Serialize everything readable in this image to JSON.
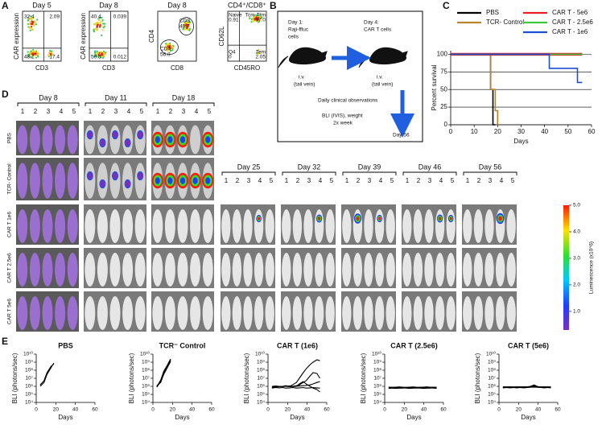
{
  "panel_a": {
    "letter": "A",
    "flow": [
      {
        "title": "Day 5",
        "ylabel": "CAR expression",
        "xlabel": "CD3",
        "labels": [
          "32.4",
          "2.09",
          "48.1",
          "17.4"
        ]
      },
      {
        "title": "Day 8",
        "ylabel": "CAR expression",
        "xlabel": "CD3",
        "labels": [
          "40.4",
          "0.039",
          "59.5",
          "0.012"
        ]
      },
      {
        "title": "Day 8",
        "ylabel": "CD4",
        "xlabel": "CD8",
        "labels": [
          "CD8",
          "43.7",
          "CD4",
          "56.0"
        ]
      },
      {
        "title": "CD4⁺/CD8⁺",
        "ylabel": "CD62L",
        "xlabel": "CD45RO",
        "labels": [
          "Naive",
          "0.91",
          "Tcm-Ttm",
          "97.0",
          "Q4",
          "0",
          "Tem",
          "2.05"
        ]
      }
    ]
  },
  "panel_b": {
    "letter": "B",
    "day1": [
      "Day 1:",
      "Raji-ffluc",
      "cells"
    ],
    "day4": [
      "Day 4:",
      "CAR T cells"
    ],
    "route": [
      "i.v.",
      "(tail vein)"
    ],
    "observations": "Daily clinical observations",
    "bli": [
      "BLI (IVIS), weight",
      "2x week"
    ],
    "end": "Day 56"
  },
  "panel_d": {
    "letter": "D",
    "days": [
      "Day 8",
      "Day 11",
      "Day 18",
      "Day 25",
      "Day 32",
      "Day 39",
      "Day 46",
      "Day 56"
    ],
    "mouse_numbers": [
      "1",
      "2",
      "3",
      "4",
      "5"
    ],
    "groups": [
      "PBS",
      "TCR- Control",
      "CAR T 1e6",
      "CAR T 2.5e6",
      "CAR T 5e6"
    ],
    "colorbar": {
      "label": "Luminescence (x10^6)",
      "clim": [
        0.3,
        5
      ],
      "ticks": [
        {
          "value": 1,
          "label": "1.0"
        },
        {
          "value": 2,
          "label": "2.0"
        },
        {
          "value": 3,
          "label": "3.0"
        },
        {
          "value": 4,
          "label": "4.0"
        },
        {
          "value": 5,
          "label": "5.0"
        }
      ]
    }
  },
  "panel_e": {
    "letter": "E"
  },
  "chart_data": [
    {
      "type": "line",
      "letter": "C",
      "step": true,
      "xlabel": "Days",
      "ylabel": "Percent survival",
      "xlim": [
        0,
        60
      ],
      "xticks": [
        0,
        10,
        20,
        30,
        40,
        50,
        60
      ],
      "ylim": [
        0,
        105
      ],
      "yticks": [
        0,
        25,
        50,
        75,
        100
      ],
      "grid": true,
      "series": [
        {
          "name": "PBS",
          "color": "#000000",
          "x": [
            0,
            17,
            17,
            18,
            18,
            19
          ],
          "values": [
            100,
            100,
            50,
            50,
            0,
            0
          ]
        },
        {
          "name": "TCR- Control",
          "color": "#b8862b",
          "x": [
            0,
            17,
            17,
            19,
            19,
            20,
            20
          ],
          "values": [
            100,
            100,
            50,
            50,
            20,
            20,
            0
          ]
        },
        {
          "name": "CAR T - 5e6",
          "color": "#e8202a",
          "x": [
            0,
            56
          ],
          "values": [
            100,
            100
          ]
        },
        {
          "name": "CAR T - 2.5e6",
          "color": "#3ec63e",
          "x": [
            0,
            56
          ],
          "values": [
            100,
            100
          ]
        },
        {
          "name": "CAR T - 1e6",
          "color": "#1f4fd1",
          "x": [
            0,
            42,
            42,
            54,
            54,
            56
          ],
          "values": [
            100,
            100,
            80,
            80,
            60,
            60
          ]
        }
      ]
    },
    {
      "type": "line",
      "log_y": true,
      "title": "PBS",
      "xlabel": "Days",
      "ylabel": "BLI (photons/sec)",
      "xlim": [
        0,
        60
      ],
      "xticks": [
        0,
        20,
        40,
        60
      ],
      "ylim": [
        10000,
        10000000000
      ],
      "yticks": [
        {
          "value": 10000,
          "label": "10⁴"
        },
        {
          "value": 100000,
          "label": "10⁵"
        },
        {
          "value": 1000000,
          "label": "10⁶"
        },
        {
          "value": 10000000,
          "label": "10⁷"
        },
        {
          "value": 100000000,
          "label": "10⁸"
        },
        {
          "value": 1000000000,
          "label": "10⁹"
        },
        {
          "value": 10000000000,
          "label": "10¹⁰"
        }
      ],
      "x": [
        4,
        8,
        11,
        15,
        18
      ],
      "series": [
        {
          "color": "#000000",
          "values": [
            1000000,
            3000000,
            30000000,
            200000000,
            800000000
          ]
        },
        {
          "color": "#000000",
          "values": [
            1500000,
            5000000,
            50000000,
            300000000,
            600000000
          ]
        }
      ]
    },
    {
      "type": "line",
      "log_y": true,
      "title": "TCR⁻ Control",
      "xlabel": "Days",
      "ylabel": "BLI (photons/sec)",
      "xlim": [
        0,
        60
      ],
      "xticks": [
        0,
        20,
        40,
        60
      ],
      "ylim": [
        10000,
        10000000000
      ],
      "yticks": [
        {
          "value": 10000,
          "label": "10⁴"
        },
        {
          "value": 100000,
          "label": "10⁵"
        },
        {
          "value": 1000000,
          "label": "10⁶"
        },
        {
          "value": 10000000,
          "label": "10⁷"
        },
        {
          "value": 100000000,
          "label": "10⁸"
        },
        {
          "value": 1000000000,
          "label": "10⁹"
        },
        {
          "value": 10000000000,
          "label": "10¹⁰"
        }
      ],
      "x": [
        4,
        8,
        11,
        15,
        18
      ],
      "series": [
        {
          "color": "#000000",
          "values": [
            800000,
            4000000,
            40000000,
            300000000,
            1500000000
          ]
        },
        {
          "color": "#000000",
          "values": [
            1000000,
            5000000,
            60000000,
            400000000,
            2000000000
          ]
        },
        {
          "color": "#000000",
          "values": [
            1200000,
            3000000,
            30000000,
            250000000,
            1200000000
          ]
        },
        {
          "color": "#000000",
          "values": [
            900000,
            6000000,
            70000000,
            500000000,
            2500000000
          ]
        },
        {
          "color": "#000000",
          "values": [
            1100000,
            4500000,
            50000000,
            350000000,
            1800000000
          ]
        }
      ]
    },
    {
      "type": "line",
      "log_y": true,
      "title": "CAR T (1e6)",
      "xlabel": "Days",
      "ylabel": "BLI (photons/sec)",
      "xlim": [
        0,
        60
      ],
      "xticks": [
        0,
        20,
        40,
        60
      ],
      "ylim": [
        10000,
        10000000000
      ],
      "yticks": [
        {
          "value": 10000,
          "label": "10⁴"
        },
        {
          "value": 100000,
          "label": "10⁵"
        },
        {
          "value": 1000000,
          "label": "10⁶"
        },
        {
          "value": 10000000,
          "label": "10⁷"
        },
        {
          "value": 100000000,
          "label": "10⁸"
        },
        {
          "value": 1000000000,
          "label": "10⁹"
        },
        {
          "value": 10000000000,
          "label": "10¹⁰"
        }
      ],
      "x": [
        4,
        8,
        11,
        15,
        18,
        22,
        25,
        29,
        32,
        36,
        39,
        43,
        46,
        50,
        53
      ],
      "series": [
        {
          "color": "#000000",
          "values": [
            800000,
            1000000,
            900000,
            1000000,
            1200000,
            1000000,
            1500000,
            3000000,
            10000000,
            50000000,
            150000000,
            500000000,
            1000000000,
            2000000000,
            1500000000
          ]
        },
        {
          "color": "#000000",
          "values": [
            800000,
            900000,
            1000000,
            1000000,
            1000000,
            900000,
            1000000,
            1200000,
            1500000,
            3000000,
            5000000,
            20000000,
            50000000,
            40000000,
            10000000
          ]
        },
        {
          "color": "#000000",
          "values": [
            700000,
            800000,
            900000,
            1000000,
            1000000,
            1000000,
            900000,
            1000000,
            2000000,
            4000000,
            2000000,
            1000000,
            600000,
            400000,
            200000
          ]
        },
        {
          "color": "#000000",
          "values": [
            1000000,
            1100000,
            1000000,
            900000,
            1000000,
            1100000,
            1000000,
            1000000,
            1100000,
            1200000,
            1300000,
            1500000,
            2000000,
            3000000,
            4000000
          ]
        },
        {
          "color": "#000000",
          "values": [
            600000,
            700000,
            650000,
            700000,
            600000,
            650000,
            700000,
            600000,
            650000,
            700000,
            600000,
            650000,
            700000,
            650000,
            600000
          ]
        }
      ]
    },
    {
      "type": "line",
      "log_y": true,
      "title": "CAR T (2.5e6)",
      "xlabel": "Days",
      "ylabel": "BLI (photons/sec)",
      "xlim": [
        0,
        60
      ],
      "xticks": [
        0,
        20,
        40,
        60
      ],
      "ylim": [
        10000,
        10000000000
      ],
      "yticks": [
        {
          "value": 10000,
          "label": "10⁴"
        },
        {
          "value": 100000,
          "label": "10⁵"
        },
        {
          "value": 1000000,
          "label": "10⁶"
        },
        {
          "value": 10000000,
          "label": "10⁷"
        },
        {
          "value": 100000000,
          "label": "10⁸"
        },
        {
          "value": 1000000000,
          "label": "10⁹"
        },
        {
          "value": 10000000000,
          "label": "10¹⁰"
        }
      ],
      "x": [
        4,
        8,
        11,
        15,
        18,
        22,
        25,
        29,
        32,
        36,
        39,
        43,
        46,
        50,
        53
      ],
      "series": [
        {
          "color": "#000000",
          "values": [
            600000,
            650000,
            700000,
            650000,
            600000,
            700000,
            650000,
            700000,
            600000,
            650000,
            700000,
            650000,
            600000,
            700000,
            650000
          ]
        },
        {
          "color": "#000000",
          "values": [
            700000,
            750000,
            700000,
            800000,
            750000,
            700000,
            800000,
            750000,
            700000,
            750000,
            800000,
            700000,
            750000,
            800000,
            700000
          ]
        },
        {
          "color": "#000000",
          "values": [
            550000,
            600000,
            550000,
            600000,
            650000,
            600000,
            550000,
            600000,
            650000,
            600000,
            550000,
            600000,
            650000,
            600000,
            550000
          ]
        },
        {
          "color": "#000000",
          "values": [
            800000,
            750000,
            800000,
            850000,
            800000,
            750000,
            800000,
            850000,
            800000,
            750000,
            800000,
            850000,
            800000,
            750000,
            800000
          ]
        },
        {
          "color": "#000000",
          "values": [
            650000,
            700000,
            650000,
            600000,
            650000,
            700000,
            650000,
            600000,
            650000,
            700000,
            650000,
            600000,
            650000,
            700000,
            650000
          ]
        }
      ]
    },
    {
      "type": "line",
      "log_y": true,
      "title": "CAR T (5e6)",
      "xlabel": "Days",
      "ylabel": "BLI (photons/sec)",
      "xlim": [
        0,
        60
      ],
      "xticks": [
        0,
        20,
        40,
        60
      ],
      "ylim": [
        10000,
        10000000000
      ],
      "yticks": [
        {
          "value": 10000,
          "label": "10⁴"
        },
        {
          "value": 100000,
          "label": "10⁵"
        },
        {
          "value": 1000000,
          "label": "10⁶"
        },
        {
          "value": 10000000,
          "label": "10⁷"
        },
        {
          "value": 100000000,
          "label": "10⁸"
        },
        {
          "value": 1000000000,
          "label": "10⁹"
        },
        {
          "value": 10000000000,
          "label": "10¹⁰"
        }
      ],
      "x": [
        4,
        8,
        11,
        15,
        18,
        22,
        25,
        29,
        32,
        36,
        39,
        43,
        46,
        50,
        53
      ],
      "series": [
        {
          "color": "#000000",
          "values": [
            700000,
            750000,
            700000,
            800000,
            750000,
            700000,
            800000,
            900000,
            1000000,
            1500000,
            1000000,
            800000,
            750000,
            800000,
            700000
          ]
        },
        {
          "color": "#000000",
          "values": [
            800000,
            850000,
            800000,
            750000,
            800000,
            850000,
            800000,
            850000,
            900000,
            1200000,
            900000,
            850000,
            800000,
            850000,
            800000
          ]
        },
        {
          "color": "#000000",
          "values": [
            650000,
            700000,
            650000,
            700000,
            650000,
            700000,
            650000,
            700000,
            750000,
            800000,
            750000,
            700000,
            650000,
            700000,
            650000
          ]
        },
        {
          "color": "#000000",
          "values": [
            900000,
            850000,
            900000,
            850000,
            900000,
            850000,
            900000,
            850000,
            900000,
            1000000,
            900000,
            850000,
            900000,
            850000,
            900000
          ]
        },
        {
          "color": "#000000",
          "values": [
            750000,
            800000,
            750000,
            800000,
            750000,
            800000,
            750000,
            800000,
            850000,
            900000,
            850000,
            800000,
            750000,
            800000,
            750000
          ]
        }
      ]
    }
  ]
}
